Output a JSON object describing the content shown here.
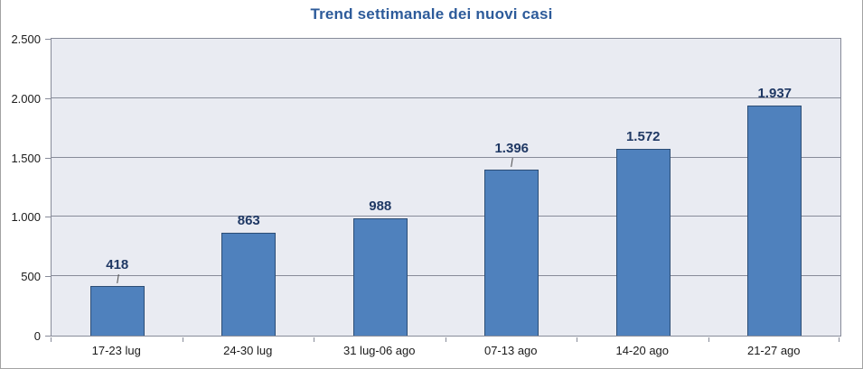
{
  "chart_data": {
    "type": "bar",
    "title": "Trend settimanale dei nuovi casi",
    "categories": [
      "17-23 lug",
      "24-30 lug",
      "31 lug-06 ago",
      "07-13 ago",
      "14-20 ago",
      "21-27 ago"
    ],
    "values": [
      418,
      863,
      988,
      1396,
      1572,
      1937
    ],
    "value_labels": [
      "418",
      "863",
      "988",
      "1.396",
      "1.572",
      "1.937"
    ],
    "xlabel": "",
    "ylabel": "",
    "ylim": [
      0,
      2500
    ],
    "ytick_step": 500,
    "ytick_labels": [
      "0",
      "500",
      "1.000",
      "1.500",
      "2.000",
      "2.500"
    ],
    "grid": true,
    "legend": "none",
    "label_leader_line_indices": [
      0,
      3
    ],
    "colors": {
      "bar_fill": "#4f81bd",
      "bar_border": "#2c4d75",
      "plot_bg": "#e9ebf2",
      "gridline": "#878b99",
      "title": "#2d5b9a",
      "data_label": "#1f3864",
      "axis_text": "#1a1a1a"
    }
  }
}
